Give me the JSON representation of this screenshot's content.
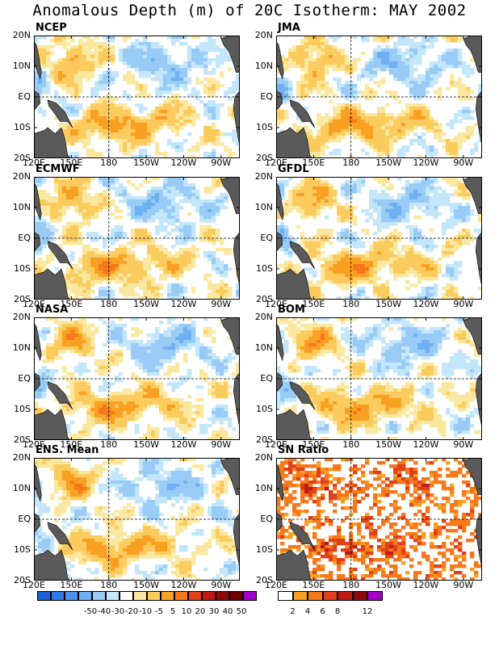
{
  "title": "Anomalous Depth (m) of 20C Isotherm: MAY 2002",
  "lat_labels": [
    "20N",
    "10N",
    "EQ",
    "10S",
    "20S"
  ],
  "lon_labels": [
    "120E",
    "150E",
    "180",
    "150W",
    "120W",
    "90W"
  ],
  "panels": [
    {
      "name": "NCEP",
      "mode": "anom",
      "seed": 3
    },
    {
      "name": "JMA",
      "mode": "anom",
      "seed": 11
    },
    {
      "name": "ECMWF",
      "mode": "anom",
      "seed": 19
    },
    {
      "name": "GFDL",
      "mode": "anom",
      "seed": 27
    },
    {
      "name": "NASA",
      "mode": "anom",
      "seed": 35
    },
    {
      "name": "BOM",
      "mode": "anom",
      "seed": 43
    },
    {
      "name": "ENS. Mean",
      "mode": "anom",
      "seed": 51
    },
    {
      "name": "SN Ratio",
      "mode": "sn",
      "seed": 59
    }
  ],
  "anom_colorbar": {
    "colors": [
      "#1c5fd4",
      "#2e7ae6",
      "#4b93ec",
      "#6fb0f2",
      "#98cbf6",
      "#c3e6fa",
      "#ffffff",
      "#fbe8a0",
      "#fccb5e",
      "#f9a023",
      "#f6781a",
      "#e0401a",
      "#c01a14",
      "#8c0a0a",
      "#6e0000",
      "#a000c8"
    ],
    "labels": [
      "-50",
      "-40",
      "-30",
      "-20",
      "-10",
      "-5",
      "5",
      "10",
      "20",
      "30",
      "40",
      "50"
    ]
  },
  "sn_colorbar": {
    "colors": [
      "#ffffff",
      "#f9a023",
      "#f6781a",
      "#e0401a",
      "#c01a14",
      "#8c0a0a",
      "#a000c8"
    ],
    "labels": [
      "2",
      "4",
      "6",
      "8",
      "12"
    ]
  },
  "land_color": "#5a5a5a"
}
